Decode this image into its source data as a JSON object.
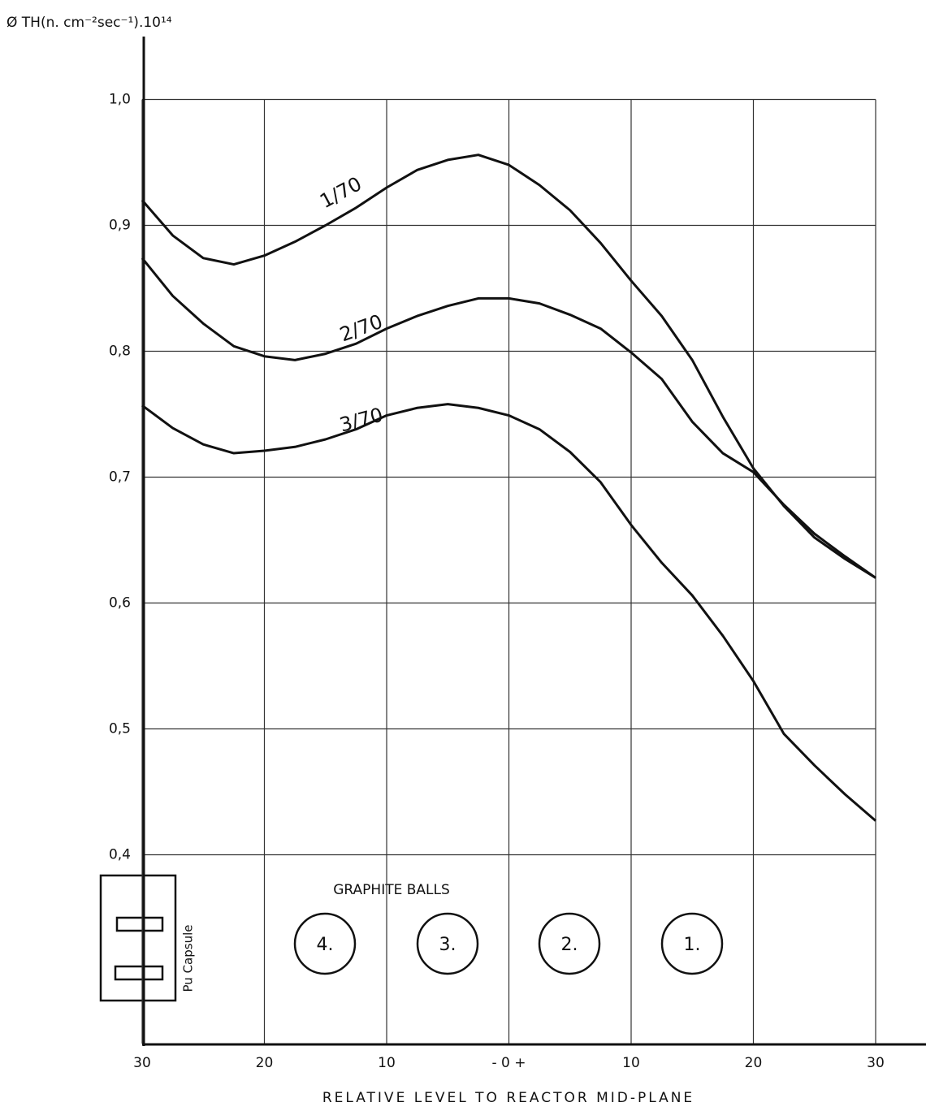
{
  "chart_data": {
    "type": "line",
    "y_label": "Ø TH(n. cm⁻²sec⁻¹).10¹⁴",
    "x_label": "RELATIVE LEVEL TO REACTOR MID-PLANE",
    "x": [
      -30,
      -27.5,
      -25,
      -22.5,
      -20,
      -17.5,
      -15,
      -12.5,
      -10,
      -7.5,
      -5,
      -2.5,
      0,
      2.5,
      5,
      7.5,
      10,
      12.5,
      15,
      17.5,
      20,
      22.5,
      25,
      27.5,
      30
    ],
    "series": [
      {
        "name": "1/70",
        "color": "#111111",
        "values": [
          0.92,
          0.892,
          0.874,
          0.869,
          0.876,
          0.887,
          0.9,
          0.914,
          0.93,
          0.944,
          0.952,
          0.956,
          0.948,
          0.932,
          0.912,
          0.886,
          0.856,
          0.828,
          0.793,
          0.748,
          0.707,
          0.677,
          0.652,
          0.635,
          0.62
        ]
      },
      {
        "name": "2/70",
        "color": "#111111",
        "values": [
          0.874,
          0.844,
          0.822,
          0.804,
          0.796,
          0.793,
          0.798,
          0.806,
          0.818,
          0.828,
          0.836,
          0.842,
          0.842,
          0.838,
          0.829,
          0.818,
          0.799,
          0.778,
          0.744,
          0.719,
          0.704,
          0.678,
          0.655,
          0.637,
          0.62
        ]
      },
      {
        "name": "3/70",
        "color": "#111111",
        "values": [
          0.757,
          0.739,
          0.726,
          0.719,
          0.721,
          0.724,
          0.73,
          0.738,
          0.749,
          0.755,
          0.758,
          0.755,
          0.749,
          0.738,
          0.72,
          0.696,
          0.662,
          0.632,
          0.606,
          0.574,
          0.538,
          0.496,
          0.471,
          0.448,
          0.427
        ]
      }
    ],
    "xlim": [
      -30,
      30
    ],
    "xticks": [
      {
        "value": -30,
        "label": "30"
      },
      {
        "value": -20,
        "label": "20"
      },
      {
        "value": -10,
        "label": "10"
      },
      {
        "value": 0,
        "label": "- 0 +"
      },
      10,
      20,
      30
    ],
    "ylim": [
      0.25,
      1.05
    ],
    "yticks": [
      {
        "value": 0.4,
        "label": "0,4"
      },
      {
        "value": 0.5,
        "label": "0,5"
      },
      {
        "value": 0.6,
        "label": "0,6"
      },
      {
        "value": 0.7,
        "label": "0,7"
      },
      {
        "value": 0.8,
        "label": "0,8"
      },
      {
        "value": 0.9,
        "label": "0,9"
      },
      {
        "value": 1.0,
        "label": "1,0"
      }
    ],
    "grid": true,
    "annotations": {
      "graphite": "GRAPHITE BALLS",
      "balls": [
        "4.",
        "3.",
        "2.",
        "1."
      ],
      "capsule": "Pu Capsule"
    }
  }
}
